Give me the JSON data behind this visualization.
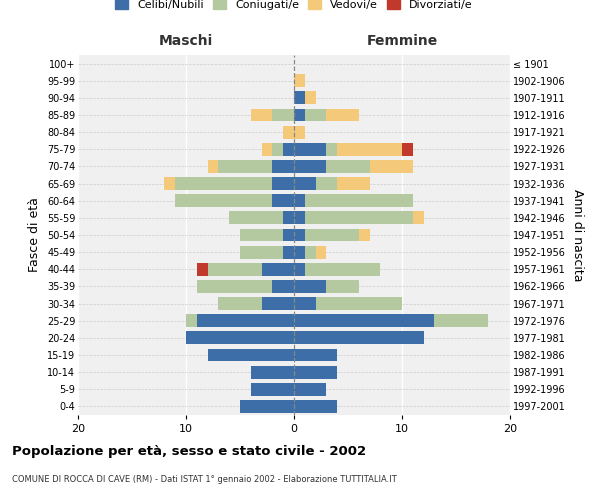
{
  "age_groups": [
    "0-4",
    "5-9",
    "10-14",
    "15-19",
    "20-24",
    "25-29",
    "30-34",
    "35-39",
    "40-44",
    "45-49",
    "50-54",
    "55-59",
    "60-64",
    "65-69",
    "70-74",
    "75-79",
    "80-84",
    "85-89",
    "90-94",
    "95-99",
    "100+"
  ],
  "birth_years": [
    "1997-2001",
    "1992-1996",
    "1987-1991",
    "1982-1986",
    "1977-1981",
    "1972-1976",
    "1967-1971",
    "1962-1966",
    "1957-1961",
    "1952-1956",
    "1947-1951",
    "1942-1946",
    "1937-1941",
    "1932-1936",
    "1927-1931",
    "1922-1926",
    "1917-1921",
    "1912-1916",
    "1907-1911",
    "1902-1906",
    "≤ 1901"
  ],
  "colors": {
    "celibi": "#3d6ea8",
    "coniugati": "#b5c9a0",
    "vedovi": "#f5c97a",
    "divorziati": "#c0392b"
  },
  "males": {
    "celibi": [
      5,
      4,
      4,
      8,
      10,
      9,
      3,
      2,
      3,
      1,
      1,
      1,
      2,
      2,
      2,
      1,
      0,
      0,
      0,
      0,
      0
    ],
    "coniugati": [
      0,
      0,
      0,
      0,
      0,
      1,
      4,
      7,
      5,
      4,
      4,
      5,
      9,
      9,
      5,
      1,
      0,
      2,
      0,
      0,
      0
    ],
    "vedovi": [
      0,
      0,
      0,
      0,
      0,
      0,
      0,
      0,
      0,
      0,
      0,
      0,
      0,
      1,
      1,
      1,
      1,
      2,
      0,
      0,
      0
    ],
    "divorziati": [
      0,
      0,
      0,
      0,
      0,
      0,
      0,
      0,
      1,
      0,
      0,
      0,
      0,
      0,
      0,
      0,
      0,
      0,
      0,
      0,
      0
    ]
  },
  "females": {
    "celibi": [
      4,
      3,
      4,
      4,
      12,
      13,
      2,
      3,
      1,
      1,
      1,
      1,
      1,
      2,
      3,
      3,
      0,
      1,
      1,
      0,
      0
    ],
    "coniugati": [
      0,
      0,
      0,
      0,
      0,
      5,
      8,
      3,
      7,
      1,
      5,
      10,
      10,
      2,
      4,
      1,
      0,
      2,
      0,
      0,
      0
    ],
    "vedovi": [
      0,
      0,
      0,
      0,
      0,
      0,
      0,
      0,
      0,
      1,
      1,
      1,
      0,
      3,
      4,
      6,
      1,
      3,
      1,
      1,
      0
    ],
    "divorziati": [
      0,
      0,
      0,
      0,
      0,
      0,
      0,
      0,
      0,
      0,
      0,
      0,
      0,
      0,
      0,
      1,
      0,
      0,
      0,
      0,
      0
    ]
  },
  "xlim": 20,
  "title": "Popolazione per età, sesso e stato civile - 2002",
  "subtitle": "COMUNE DI ROCCA DI CAVE (RM) - Dati ISTAT 1° gennaio 2002 - Elaborazione TUTTITALIA.IT",
  "ylabel_left": "Fasce di età",
  "ylabel_right": "Anni di nascita",
  "xlabel_left": "Maschi",
  "xlabel_right": "Femmine",
  "legend_labels": [
    "Celibi/Nubili",
    "Coniugati/e",
    "Vedovi/e",
    "Divorziati/e"
  ],
  "bg_color": "#f0f0f0"
}
